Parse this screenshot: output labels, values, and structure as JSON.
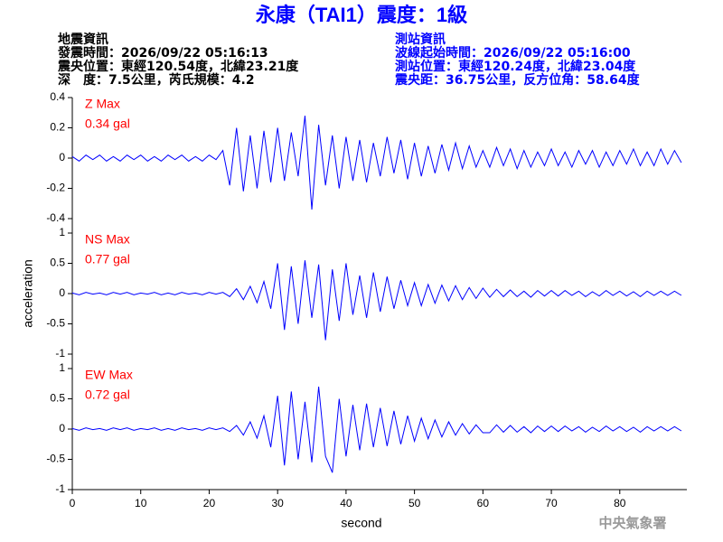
{
  "header": {
    "title": "永康（TAI1）震度：1級",
    "left": [
      "地震資訊",
      "發震時間：2026/09/22 05:16:13",
      "震央位置：東經120.54度，北緯23.21度",
      "深　度：7.5公里，芮氏規模：4.2"
    ],
    "right": [
      "測站資訊",
      "波線起始時間：2026/09/22 05:16:00",
      "測站位置：東經120.24度，北緯23.04度",
      "震央距：36.75公里，反方位角：58.64度"
    ],
    "footer": "中央氣象署"
  },
  "chart_data": [
    {
      "type": "line",
      "annotations": [
        "Z Max",
        "0.34 gal"
      ],
      "color": "#0000ff",
      "xlim": [
        0,
        89.8
      ],
      "ylim": [
        -0.4,
        0.4
      ],
      "yticks": [
        -0.4,
        -0.2,
        0,
        0.2,
        0.4
      ],
      "x": [
        0,
        1,
        2,
        3,
        4,
        5,
        6,
        7,
        8,
        9,
        10,
        11,
        12,
        13,
        14,
        15,
        16,
        17,
        18,
        19,
        20,
        21,
        22,
        23,
        24,
        25,
        26,
        27,
        28,
        29,
        30,
        31,
        32,
        33,
        34,
        35,
        36,
        37,
        38,
        39,
        40,
        41,
        42,
        43,
        44,
        45,
        46,
        47,
        48,
        49,
        50,
        51,
        52,
        53,
        54,
        55,
        56,
        57,
        58,
        59,
        60,
        61,
        62,
        63,
        64,
        65,
        66,
        67,
        68,
        69,
        70,
        71,
        72,
        73,
        74,
        75,
        76,
        77,
        78,
        79,
        80,
        81,
        82,
        83,
        84,
        85,
        86,
        87,
        88,
        89
      ],
      "values": [
        0.01,
        -0.02,
        0.02,
        -0.01,
        0.02,
        -0.02,
        0.01,
        -0.02,
        0.02,
        -0.01,
        0.02,
        -0.02,
        0.01,
        -0.02,
        0.02,
        -0.01,
        0.02,
        -0.02,
        0.01,
        -0.02,
        0.02,
        -0.01,
        0.05,
        -0.18,
        0.2,
        -0.22,
        0.15,
        -0.2,
        0.18,
        -0.16,
        0.2,
        -0.15,
        0.17,
        -0.12,
        0.28,
        -0.34,
        0.22,
        -0.18,
        0.15,
        -0.2,
        0.14,
        -0.15,
        0.12,
        -0.16,
        0.1,
        -0.12,
        0.14,
        -0.1,
        0.12,
        -0.14,
        0.1,
        -0.12,
        0.08,
        -0.1,
        0.09,
        -0.08,
        0.1,
        -0.07,
        0.08,
        -0.06,
        0.05,
        -0.06,
        0.07,
        -0.05,
        0.06,
        -0.07,
        0.05,
        -0.06,
        0.04,
        -0.05,
        0.06,
        -0.05,
        0.04,
        -0.06,
        0.05,
        -0.04,
        0.05,
        -0.06,
        0.04,
        -0.05,
        0.05,
        -0.04,
        0.06,
        -0.05,
        0.04,
        -0.05,
        0.06,
        -0.04,
        0.05,
        -0.03
      ]
    },
    {
      "type": "line",
      "annotations": [
        "NS Max",
        "0.77 gal"
      ],
      "color": "#0000ff",
      "ylabel": "acceleration",
      "xlim": [
        0,
        89.8
      ],
      "ylim": [
        -1,
        1
      ],
      "yticks": [
        -1,
        -0.5,
        0,
        0.5,
        1
      ],
      "x": [
        0,
        1,
        2,
        3,
        4,
        5,
        6,
        7,
        8,
        9,
        10,
        11,
        12,
        13,
        14,
        15,
        16,
        17,
        18,
        19,
        20,
        21,
        22,
        23,
        24,
        25,
        26,
        27,
        28,
        29,
        30,
        31,
        32,
        33,
        34,
        35,
        36,
        37,
        38,
        39,
        40,
        41,
        42,
        43,
        44,
        45,
        46,
        47,
        48,
        49,
        50,
        51,
        52,
        53,
        54,
        55,
        56,
        57,
        58,
        59,
        60,
        61,
        62,
        63,
        64,
        65,
        66,
        67,
        68,
        69,
        70,
        71,
        72,
        73,
        74,
        75,
        76,
        77,
        78,
        79,
        80,
        81,
        82,
        83,
        84,
        85,
        86,
        87,
        88,
        89
      ],
      "values": [
        0.01,
        -0.02,
        0.02,
        -0.01,
        0.01,
        -0.02,
        0.02,
        -0.01,
        0.02,
        -0.02,
        0.01,
        -0.01,
        0.02,
        -0.02,
        0.01,
        -0.02,
        0.02,
        -0.01,
        0.01,
        -0.02,
        0.02,
        -0.01,
        0.02,
        -0.05,
        0.08,
        -0.1,
        0.12,
        -0.15,
        0.2,
        -0.25,
        0.5,
        -0.6,
        0.45,
        -0.5,
        0.55,
        -0.4,
        0.48,
        -0.77,
        0.4,
        -0.45,
        0.5,
        -0.35,
        0.3,
        -0.4,
        0.35,
        -0.3,
        0.28,
        -0.25,
        0.22,
        -0.2,
        0.18,
        -0.2,
        0.15,
        -0.16,
        0.14,
        -0.12,
        0.13,
        -0.1,
        0.1,
        -0.08,
        0.09,
        -0.06,
        0.07,
        -0.05,
        0.06,
        -0.05,
        0.04,
        -0.06,
        0.05,
        -0.04,
        0.05,
        -0.04,
        0.05,
        -0.03,
        0.04,
        -0.05,
        0.03,
        -0.04,
        0.05,
        -0.03,
        0.04,
        -0.04,
        0.03,
        -0.05,
        0.04,
        -0.03,
        0.04,
        -0.03,
        0.04,
        -0.03
      ]
    },
    {
      "type": "line",
      "annotations": [
        "EW Max",
        "0.72 gal"
      ],
      "color": "#0000ff",
      "xlabel": "second",
      "xlim": [
        0,
        89.8
      ],
      "xticks": [
        0,
        10,
        20,
        30,
        40,
        50,
        60,
        70,
        80
      ],
      "ylim": [
        -1,
        1
      ],
      "yticks": [
        -1,
        -0.5,
        0,
        0.5,
        1
      ],
      "x": [
        0,
        1,
        2,
        3,
        4,
        5,
        6,
        7,
        8,
        9,
        10,
        11,
        12,
        13,
        14,
        15,
        16,
        17,
        18,
        19,
        20,
        21,
        22,
        23,
        24,
        25,
        26,
        27,
        28,
        29,
        30,
        31,
        32,
        33,
        34,
        35,
        36,
        37,
        38,
        39,
        40,
        41,
        42,
        43,
        44,
        45,
        46,
        47,
        48,
        49,
        50,
        51,
        52,
        53,
        54,
        55,
        56,
        57,
        58,
        59,
        60,
        61,
        62,
        63,
        64,
        65,
        66,
        67,
        68,
        69,
        70,
        71,
        72,
        73,
        74,
        75,
        76,
        77,
        78,
        79,
        80,
        81,
        82,
        83,
        84,
        85,
        86,
        87,
        88,
        89
      ],
      "values": [
        0.01,
        -0.02,
        0.02,
        -0.01,
        0.01,
        -0.02,
        0.02,
        -0.01,
        0.02,
        -0.02,
        0.01,
        -0.01,
        0.02,
        -0.02,
        0.01,
        -0.02,
        0.02,
        -0.01,
        0.01,
        -0.02,
        0.02,
        -0.01,
        0.02,
        -0.04,
        0.06,
        -0.1,
        0.12,
        -0.15,
        0.22,
        -0.3,
        0.55,
        -0.6,
        0.62,
        -0.5,
        0.45,
        -0.55,
        0.7,
        -0.45,
        -0.72,
        0.5,
        -0.45,
        0.4,
        -0.35,
        0.42,
        -0.3,
        0.35,
        -0.28,
        0.3,
        -0.25,
        0.22,
        -0.2,
        0.18,
        -0.16,
        0.15,
        -0.13,
        0.12,
        -0.1,
        0.09,
        -0.08,
        0.07,
        -0.06,
        -0.06,
        0.07,
        -0.05,
        0.06,
        -0.05,
        0.04,
        -0.06,
        0.05,
        -0.04,
        0.05,
        -0.04,
        0.05,
        -0.03,
        0.04,
        -0.05,
        0.03,
        -0.04,
        0.05,
        -0.03,
        0.04,
        -0.04,
        0.03,
        -0.05,
        0.04,
        -0.03,
        0.04,
        -0.03,
        0.04,
        -0.03
      ]
    }
  ]
}
